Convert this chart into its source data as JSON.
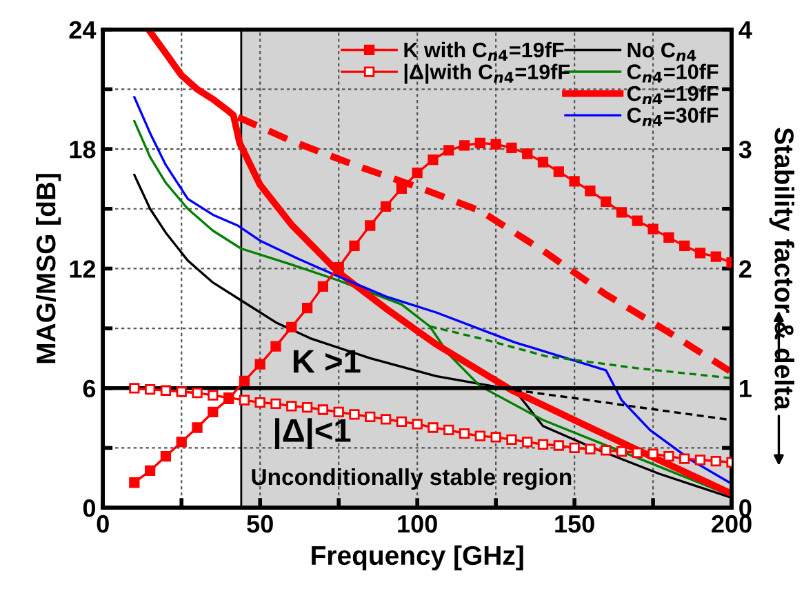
{
  "chart_data": {
    "type": "line",
    "xlabel": "Frequency [GHz]",
    "ylabel": "MAG/MSG [dB]",
    "y2label": "Stability factor & delta",
    "xlim": [
      0,
      200
    ],
    "xticks": [
      0,
      {
        "value": 25,
        "label": null
      },
      50,
      {
        "value": 75,
        "label": null
      },
      100,
      {
        "value": 125,
        "label": null
      },
      150,
      {
        "value": 175,
        "label": null
      },
      200
    ],
    "ylim": [
      0,
      24
    ],
    "yticks": [
      0,
      {
        "value": 3,
        "label": null
      },
      6,
      {
        "value": 9,
        "label": null
      },
      12,
      {
        "value": 15,
        "label": null
      },
      18,
      {
        "value": 21,
        "label": null
      },
      24
    ],
    "y2lim": [
      0,
      4
    ],
    "y2ticks": [
      0,
      {
        "value": 0.5,
        "label": null
      },
      1,
      {
        "value": 1.5,
        "label": null
      },
      2,
      {
        "value": 2.5,
        "label": null
      },
      3,
      {
        "value": 3.5,
        "label": null
      },
      4
    ],
    "grid": true,
    "legend": "top right",
    "marker": "none",
    "line_style": "solid",
    "series": [
      {
        "name": "K with C$_{n4}$=19fF",
        "color": "#ff0000",
        "axis": "y2",
        "marker": "square",
        "x": [
          10,
          15,
          20,
          25,
          30,
          35,
          40,
          45,
          50,
          55,
          60,
          65,
          70,
          75,
          80,
          85,
          90,
          95,
          100,
          105,
          110,
          115,
          120,
          125,
          130,
          135,
          140,
          145,
          150,
          155,
          160,
          165,
          170,
          175,
          180,
          185,
          190,
          195,
          200
        ],
        "values": [
          0.21,
          0.31,
          0.43,
          0.55,
          0.67,
          0.8,
          0.91,
          1.06,
          1.2,
          1.35,
          1.51,
          1.67,
          1.85,
          2.01,
          2.19,
          2.36,
          2.52,
          2.67,
          2.8,
          2.91,
          2.99,
          3.03,
          3.05,
          3.04,
          3.01,
          2.96,
          2.89,
          2.81,
          2.73,
          2.65,
          2.56,
          2.47,
          2.4,
          2.33,
          2.26,
          2.19,
          2.13,
          2.1,
          2.05
        ]
      },
      {
        "name": "|Δ|with C$_{n4}$=19fF",
        "color": "#ff0000",
        "axis": "y2",
        "marker": "square",
        "x": [
          10,
          15,
          20,
          25,
          30,
          35,
          40,
          45,
          50,
          55,
          60,
          65,
          70,
          75,
          80,
          85,
          90,
          95,
          100,
          105,
          110,
          115,
          120,
          125,
          130,
          135,
          140,
          145,
          150,
          155,
          160,
          165,
          170,
          175,
          180,
          185,
          190,
          195,
          200
        ],
        "values": [
          1.0,
          0.99,
          0.98,
          0.97,
          0.96,
          0.94,
          0.92,
          0.9,
          0.88,
          0.87,
          0.85,
          0.84,
          0.82,
          0.8,
          0.78,
          0.76,
          0.74,
          0.72,
          0.7,
          0.67,
          0.65,
          0.62,
          0.6,
          0.59,
          0.57,
          0.55,
          0.53,
          0.52,
          0.5,
          0.49,
          0.48,
          0.47,
          0.46,
          0.45,
          0.43,
          0.41,
          0.4,
          0.39,
          0.38
        ]
      },
      {
        "name": "No C$_{n4}$",
        "color": "#000000",
        "x": [
          10,
          15,
          20,
          27,
          35,
          43,
          55,
          66,
          85,
          106,
          131,
          140,
          156,
          177,
          200
        ],
        "values": [
          16.7,
          15.0,
          13.8,
          12.4,
          11.3,
          10.5,
          9.3,
          8.5,
          7.5,
          6.6,
          5.9,
          4.1,
          3.0,
          1.7,
          0.5
        ]
      },
      {
        "name": "C$_{n4}$=10fF",
        "color": "#008000",
        "x": [
          10,
          15,
          20,
          27,
          35,
          44,
          60,
          75,
          95,
          104,
          110,
          120,
          140,
          170,
          200
        ],
        "values": [
          19.4,
          17.6,
          16.3,
          15.0,
          13.9,
          13.0,
          12.2,
          11.4,
          10.2,
          9.1,
          7.7,
          6.1,
          4.4,
          2.5,
          0.6
        ]
      },
      {
        "name": "C$_{n4}$=19fF",
        "color": "#ff0000",
        "x": [
          14.5,
          20,
          25,
          30,
          35,
          40,
          41.5,
          43.5,
          50,
          60,
          75,
          90,
          106,
          130,
          150,
          170,
          200
        ],
        "values": [
          24,
          22.8,
          21.7,
          21.0,
          20.5,
          19.9,
          19.7,
          18.3,
          16.2,
          14.2,
          11.8,
          10.0,
          8.2,
          5.9,
          4.4,
          2.9,
          0.7
        ]
      },
      {
        "name": "C$_{n4}$=30fF",
        "color": "#0000ff",
        "x": [
          10,
          15,
          20,
          27,
          35,
          43,
          50,
          62,
          75,
          90,
          106,
          131,
          160,
          165,
          174,
          187,
          200
        ],
        "values": [
          20.6,
          18.8,
          17.2,
          15.5,
          14.7,
          14.15,
          13.4,
          12.5,
          11.6,
          10.6,
          9.8,
          8.3,
          6.9,
          5.4,
          3.9,
          2.4,
          1.2
        ]
      },
      {
        "color": "#000000",
        "line_style": "dashed",
        "x": [
          131,
          150,
          170,
          200
        ],
        "values": [
          5.9,
          5.5,
          5.05,
          4.4
        ]
      },
      {
        "color": "#008000",
        "line_style": "dashed",
        "x": [
          104,
          120,
          141,
          170,
          200
        ],
        "values": [
          9.1,
          8.5,
          7.6,
          7.0,
          6.5
        ]
      },
      {
        "color": "#ff0000",
        "line_style": "dashed",
        "x": [
          43,
          60,
          80,
          100,
          120,
          140,
          160,
          180,
          200
        ],
        "values": [
          19.6,
          18.4,
          17.2,
          16.1,
          14.9,
          12.9,
          10.7,
          8.8,
          6.8
        ]
      }
    ],
    "ref_lines": [
      {
        "axis": "y2",
        "value": 1,
        "color": "#000000",
        "line_style": "solid"
      },
      {
        "axis": "x",
        "value": 44,
        "color": "#000000",
        "line_style": "solid"
      }
    ],
    "bands": [
      {
        "axis": "x",
        "from": 44,
        "to": 200,
        "label": "Unconditionally stable region",
        "color": "#d3d3d3"
      }
    ],
    "annotations": [
      "K >1",
      "|Δ|<1"
    ]
  }
}
